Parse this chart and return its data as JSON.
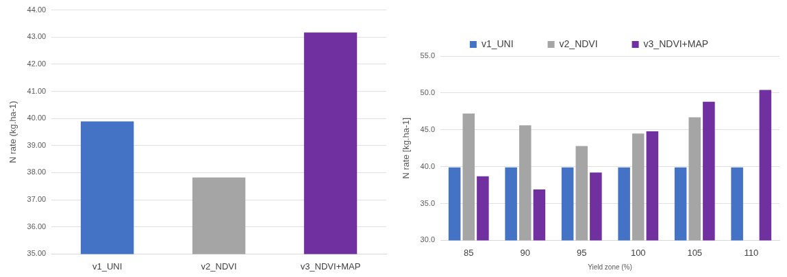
{
  "chart_data": [
    {
      "type": "bar",
      "ylabel": "N rate (kg.ha-1)",
      "categories": [
        "v1_UNI",
        "v2_NDVI",
        "v3_NDVI+MAP"
      ],
      "values": [
        39.89,
        37.82,
        43.17
      ],
      "colors": [
        "#4472c4",
        "#a5a5a5",
        "#7030a0"
      ],
      "ylim": [
        35,
        44
      ],
      "yticks": [
        {
          "value": 35,
          "label": "35.00"
        },
        {
          "value": 36,
          "label": "36.00"
        },
        {
          "value": 37,
          "label": "37.00"
        },
        {
          "value": 38,
          "label": "38.00"
        },
        {
          "value": 39,
          "label": "39.00"
        },
        {
          "value": 40,
          "label": "40.00"
        },
        {
          "value": 41,
          "label": "41.00"
        },
        {
          "value": 42,
          "label": "42.00"
        },
        {
          "value": 43,
          "label": "43.00"
        },
        {
          "value": 44,
          "label": "44.00"
        }
      ],
      "grid": "y",
      "legend": false
    },
    {
      "type": "bar",
      "xlabel": "Yield zone (%)",
      "ylabel": "N rate [kg.ha-1]",
      "categories": [
        "85",
        "90",
        "95",
        "100",
        "105",
        "110"
      ],
      "series": [
        {
          "name": "v1_UNI",
          "color": "#4472c4",
          "values": [
            39.9,
            39.9,
            39.9,
            39.9,
            39.9,
            39.9
          ]
        },
        {
          "name": "v2_NDVI",
          "color": "#a5a5a5",
          "values": [
            47.2,
            45.6,
            42.8,
            44.5,
            46.7,
            null
          ]
        },
        {
          "name": "v3_NDVI+MAP",
          "color": "#7030a0",
          "values": [
            38.7,
            36.9,
            39.2,
            44.8,
            48.8,
            50.4
          ]
        }
      ],
      "ylim": [
        30,
        55
      ],
      "yticks": [
        {
          "value": 30,
          "label": "30.0"
        },
        {
          "value": 35,
          "label": "35.0"
        },
        {
          "value": 40,
          "label": "40.0"
        },
        {
          "value": 45,
          "label": "45.0"
        },
        {
          "value": 50,
          "label": "50.0"
        },
        {
          "value": 55,
          "label": "55.0"
        }
      ],
      "grid": "y",
      "legend": "top"
    }
  ]
}
